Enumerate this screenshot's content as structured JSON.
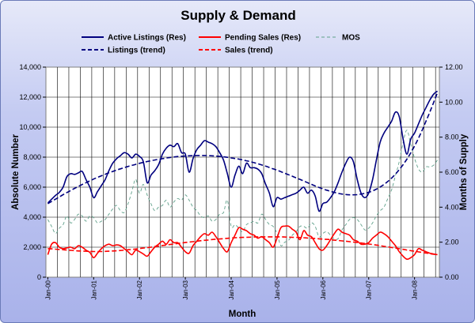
{
  "chart_data": {
    "type": "line",
    "title": "Supply & Demand",
    "xlabel": "Month",
    "ylabel": "Absolute Number",
    "y2label": "Months of Supply",
    "ylim": [
      0,
      14000
    ],
    "y2lim": [
      0,
      12
    ],
    "yticks": [
      "0",
      "2,000",
      "4,000",
      "6,000",
      "8,000",
      "10,000",
      "12,000",
      "14,000"
    ],
    "y2ticks": [
      "0.00",
      "2.00",
      "4.00",
      "6.00",
      "8.00",
      "10.00",
      "12.00"
    ],
    "x_tick_labels": [
      "Jan-00",
      "Jan-01",
      "Jan-02",
      "Jan-03",
      "Jan-04",
      "Jan-05",
      "Jan-06",
      "Jan-07",
      "Jan-08"
    ],
    "months": 103,
    "legend_position": "top",
    "grid": "vertical-monthly",
    "series": [
      {
        "name": "Active Listings (Res)",
        "axis": "left",
        "color": "#00007f",
        "style": "solid",
        "values": [
          4950,
          5200,
          5450,
          5650,
          6000,
          6700,
          6900,
          6850,
          6950,
          7050,
          6500,
          6000,
          5300,
          5700,
          6100,
          6500,
          7100,
          7600,
          7900,
          8100,
          8300,
          8200,
          7950,
          8200,
          8050,
          7700,
          6300,
          6800,
          7100,
          7500,
          8200,
          8600,
          8800,
          8700,
          8900,
          8300,
          8200,
          7000,
          7900,
          8500,
          8800,
          9100,
          9000,
          8900,
          8700,
          8300,
          7800,
          6900,
          6000,
          6800,
          7400,
          6900,
          7600,
          7300,
          7300,
          7200,
          6900,
          6200,
          5600,
          4700,
          5300,
          5200,
          5300,
          5400,
          5500,
          5600,
          5800,
          6000,
          5600,
          5800,
          5400,
          4400,
          4900,
          5000,
          5300,
          5700,
          6300,
          7000,
          7600,
          8000,
          7700,
          6500,
          5600,
          5300,
          5600,
          6500,
          7800,
          9000,
          9600,
          10000,
          10400,
          11000,
          10700,
          9200,
          8200,
          9200,
          9600,
          10200,
          10800,
          11300,
          11800,
          12200,
          12400
        ]
      },
      {
        "name": "Pending Sales (Res)",
        "axis": "left",
        "color": "#ff0000",
        "style": "solid",
        "values": [
          1500,
          2200,
          2300,
          2000,
          1900,
          1950,
          2000,
          1900,
          2100,
          2000,
          1800,
          1650,
          1300,
          1600,
          1900,
          2100,
          2200,
          2100,
          2150,
          2100,
          1900,
          1700,
          1500,
          1800,
          1700,
          1550,
          1400,
          1700,
          2000,
          2200,
          2400,
          2200,
          2500,
          2300,
          2300,
          2000,
          1700,
          1600,
          2100,
          2400,
          2700,
          2900,
          2800,
          3000,
          2700,
          2300,
          1900,
          1700,
          2300,
          2800,
          3300,
          3200,
          3100,
          2900,
          2800,
          2600,
          2700,
          2500,
          2300,
          2000,
          2600,
          3300,
          3400,
          3400,
          3200,
          3000,
          2500,
          3100,
          2800,
          2700,
          2300,
          1900,
          1800,
          2100,
          2500,
          2900,
          3200,
          3000,
          2900,
          2800,
          2500,
          2400,
          2200,
          2200,
          2300,
          2600,
          2800,
          3000,
          2900,
          2700,
          2400,
          2100,
          1700,
          1400,
          1200,
          1300,
          1500,
          1900,
          1800,
          1700,
          1600,
          1550,
          1500
        ]
      },
      {
        "name": "MOS",
        "axis": "right",
        "color": "#5fa08a",
        "style": "dashed",
        "values": [
          3.3,
          2.9,
          2.5,
          2.8,
          3.0,
          3.5,
          3.1,
          3.3,
          3.6,
          3.5,
          3.2,
          3.5,
          3.4,
          3.1,
          3.2,
          3.3,
          3.6,
          3.9,
          4.1,
          3.8,
          3.7,
          4.2,
          4.9,
          5.6,
          4.8,
          5.3,
          4.7,
          4.2,
          3.8,
          4.0,
          4.1,
          4.4,
          4.0,
          4.3,
          4.5,
          4.4,
          4.7,
          4.4,
          4.0,
          3.8,
          3.5,
          3.4,
          3.5,
          3.2,
          3.3,
          3.6,
          3.7,
          4.4,
          2.9,
          3.0,
          2.8,
          2.6,
          3.0,
          3.1,
          3.2,
          3.1,
          3.6,
          3.3,
          3.0,
          2.9,
          2.5,
          1.8,
          2.0,
          2.1,
          2.4,
          2.6,
          2.9,
          2.9,
          2.8,
          3.1,
          2.9,
          2.3,
          2.5,
          2.6,
          2.4,
          2.2,
          2.2,
          2.7,
          3.0,
          3.3,
          3.4,
          3.3,
          3.0,
          2.7,
          2.8,
          3.1,
          3.5,
          3.8,
          4.0,
          4.5,
          5.0,
          5.8,
          6.6,
          7.7,
          8.4,
          7.6,
          6.8,
          6.2,
          6.0,
          6.3,
          6.3,
          6.4,
          6.7
        ]
      },
      {
        "name": "Listings (trend)",
        "axis": "left",
        "color": "#00007f",
        "style": "dashed",
        "values": [
          4900,
          5050,
          5200,
          5350,
          5500,
          5640,
          5780,
          5920,
          6050,
          6180,
          6300,
          6420,
          6540,
          6650,
          6760,
          6860,
          6960,
          7050,
          7140,
          7220,
          7300,
          7380,
          7450,
          7520,
          7590,
          7650,
          7710,
          7760,
          7810,
          7860,
          7900,
          7940,
          7980,
          8010,
          8040,
          8060,
          8080,
          8090,
          8100,
          8110,
          8110,
          8110,
          8100,
          8090,
          8070,
          8050,
          8020,
          7990,
          7950,
          7910,
          7870,
          7820,
          7760,
          7700,
          7630,
          7560,
          7480,
          7400,
          7310,
          7220,
          7130,
          7030,
          6930,
          6830,
          6730,
          6620,
          6520,
          6410,
          6300,
          6190,
          6080,
          5980,
          5890,
          5800,
          5720,
          5650,
          5590,
          5540,
          5510,
          5490,
          5490,
          5500,
          5540,
          5590,
          5660,
          5750,
          5870,
          6010,
          6180,
          6380,
          6610,
          6870,
          7170,
          7500,
          7870,
          8280,
          8740,
          9250,
          9800,
          10400,
          11000,
          11650,
          12300
        ]
      },
      {
        "name": "Sales (trend)",
        "axis": "left",
        "color": "#ff0000",
        "style": "dashed",
        "values": [
          1900,
          1890,
          1870,
          1850,
          1830,
          1810,
          1790,
          1770,
          1750,
          1740,
          1730,
          1720,
          1710,
          1710,
          1710,
          1720,
          1730,
          1750,
          1760,
          1780,
          1800,
          1830,
          1850,
          1880,
          1910,
          1940,
          1970,
          2000,
          2040,
          2070,
          2110,
          2140,
          2180,
          2210,
          2250,
          2280,
          2310,
          2340,
          2370,
          2400,
          2430,
          2460,
          2480,
          2510,
          2530,
          2550,
          2570,
          2590,
          2610,
          2630,
          2640,
          2650,
          2660,
          2670,
          2680,
          2690,
          2690,
          2690,
          2690,
          2690,
          2690,
          2690,
          2680,
          2670,
          2660,
          2650,
          2640,
          2630,
          2610,
          2600,
          2580,
          2560,
          2540,
          2520,
          2500,
          2470,
          2450,
          2420,
          2400,
          2370,
          2340,
          2310,
          2280,
          2250,
          2210,
          2180,
          2140,
          2100,
          2060,
          2020,
          1980,
          1940,
          1900,
          1860,
          1810,
          1770,
          1730,
          1690,
          1650,
          1610,
          1570,
          1530,
          1500
        ]
      }
    ]
  }
}
